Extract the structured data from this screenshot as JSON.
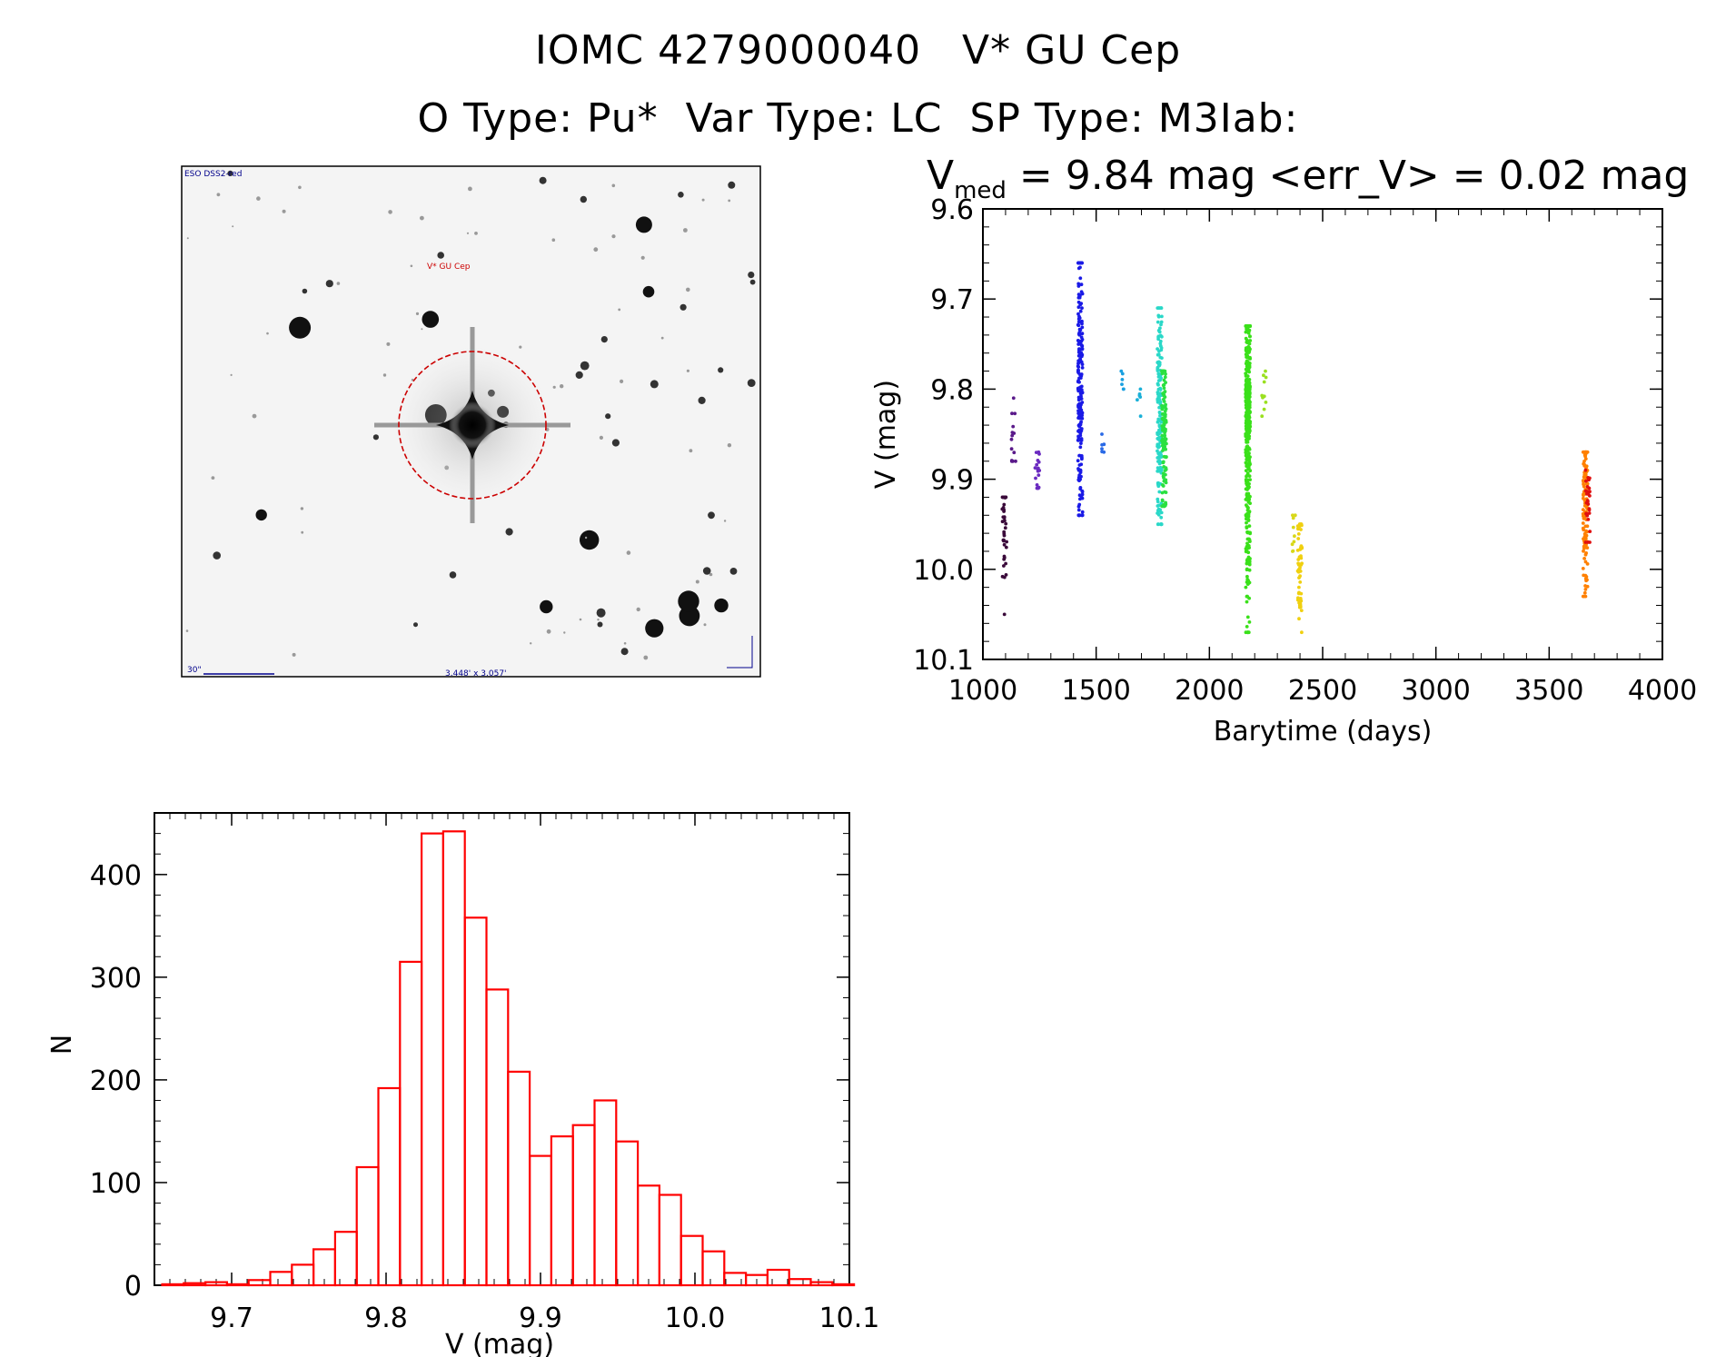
{
  "header": {
    "line1": "IOMC 4279000040   V* GU Cep",
    "line2": "O Type: Pu*  Var Type: LC  SP Type: M3Iab:",
    "stats_v": "V",
    "stats_sub": "med",
    "stats_rest": " = 9.84 mag <err_V> = 0.02 mag"
  },
  "sky_image": {
    "survey": "ESO DSS2-red",
    "target_label": "V* GU Cep",
    "scale_label": "30\"",
    "size_label": "3.448' x 3.057'"
  },
  "chart_data": [
    {
      "type": "scatter",
      "name": "light_curve",
      "xlabel": "Barytime (days)",
      "ylabel": "V (mag)",
      "xlim": [
        1000,
        4000
      ],
      "ylim": [
        10.1,
        9.6
      ],
      "y_inverted": true,
      "xticks": [
        1000,
        1500,
        2000,
        2500,
        3000,
        3500,
        4000
      ],
      "yticks": [
        9.6,
        9.7,
        9.8,
        9.9,
        10.0,
        10.1
      ],
      "ytick_labels": [
        "9.6",
        "9.7",
        "9.8",
        "9.9",
        "10.0",
        "10.1"
      ],
      "groups": [
        {
          "x": 1095,
          "ymin": 9.92,
          "ymax": 10.05,
          "center": 9.96,
          "n": 40,
          "color": "#3a0a3a"
        },
        {
          "x": 1135,
          "ymin": 9.81,
          "ymax": 9.88,
          "center": 9.85,
          "n": 14,
          "color": "#5a1a8a"
        },
        {
          "x": 1240,
          "ymin": 9.87,
          "ymax": 9.91,
          "center": 9.89,
          "n": 18,
          "color": "#6a2ac0"
        },
        {
          "x": 1430,
          "ymin": 9.66,
          "ymax": 9.94,
          "center": 9.8,
          "n": 220,
          "color": "#1a1ae6"
        },
        {
          "x": 1530,
          "ymin": 9.85,
          "ymax": 9.87,
          "center": 9.86,
          "n": 6,
          "color": "#2a6ae6"
        },
        {
          "x": 1620,
          "ymin": 9.78,
          "ymax": 9.8,
          "center": 9.79,
          "n": 6,
          "color": "#1aa0e0"
        },
        {
          "x": 1690,
          "ymin": 9.8,
          "ymax": 9.83,
          "center": 9.81,
          "n": 6,
          "color": "#1ab0d8"
        },
        {
          "x": 1780,
          "ymin": 9.71,
          "ymax": 9.95,
          "center": 9.82,
          "n": 160,
          "color": "#2ad8c8"
        },
        {
          "x": 1800,
          "ymin": 9.78,
          "ymax": 9.93,
          "center": 9.84,
          "n": 120,
          "color": "#2ae040"
        },
        {
          "x": 2170,
          "ymin": 9.73,
          "ymax": 10.07,
          "center": 9.84,
          "n": 420,
          "color": "#3ae01a"
        },
        {
          "x": 2240,
          "ymin": 9.78,
          "ymax": 9.83,
          "center": 9.8,
          "n": 10,
          "color": "#9ae020"
        },
        {
          "x": 2370,
          "ymin": 9.94,
          "ymax": 9.98,
          "center": 9.96,
          "n": 10,
          "color": "#d8d81a"
        },
        {
          "x": 2400,
          "ymin": 9.95,
          "ymax": 10.07,
          "center": 10.0,
          "n": 60,
          "color": "#f0d010"
        },
        {
          "x": 3660,
          "ymin": 9.87,
          "ymax": 10.03,
          "center": 9.93,
          "n": 120,
          "color": "#ff8000"
        },
        {
          "x": 3670,
          "ymin": 9.89,
          "ymax": 9.97,
          "center": 9.93,
          "n": 30,
          "color": "#e01010"
        }
      ]
    },
    {
      "type": "bar",
      "name": "histogram",
      "style": "step",
      "color": "#ff0000",
      "xlabel": "V (mag)",
      "ylabel": "N",
      "xlim": [
        9.65,
        10.1
      ],
      "ylim": [
        0,
        460
      ],
      "xticks": [
        9.7,
        9.8,
        9.9,
        10.0,
        10.1
      ],
      "xtick_labels": [
        "9.7",
        "9.8",
        "9.9",
        "10.0",
        "10.1"
      ],
      "yticks": [
        0,
        100,
        200,
        300,
        400
      ],
      "bin_width": 0.014,
      "bin_start": 9.655,
      "values": [
        1,
        2,
        3,
        1,
        5,
        13,
        20,
        35,
        52,
        115,
        192,
        315,
        440,
        442,
        358,
        288,
        208,
        126,
        145,
        156,
        180,
        140,
        97,
        88,
        48,
        33,
        12,
        10,
        15,
        6,
        3,
        1
      ]
    }
  ]
}
